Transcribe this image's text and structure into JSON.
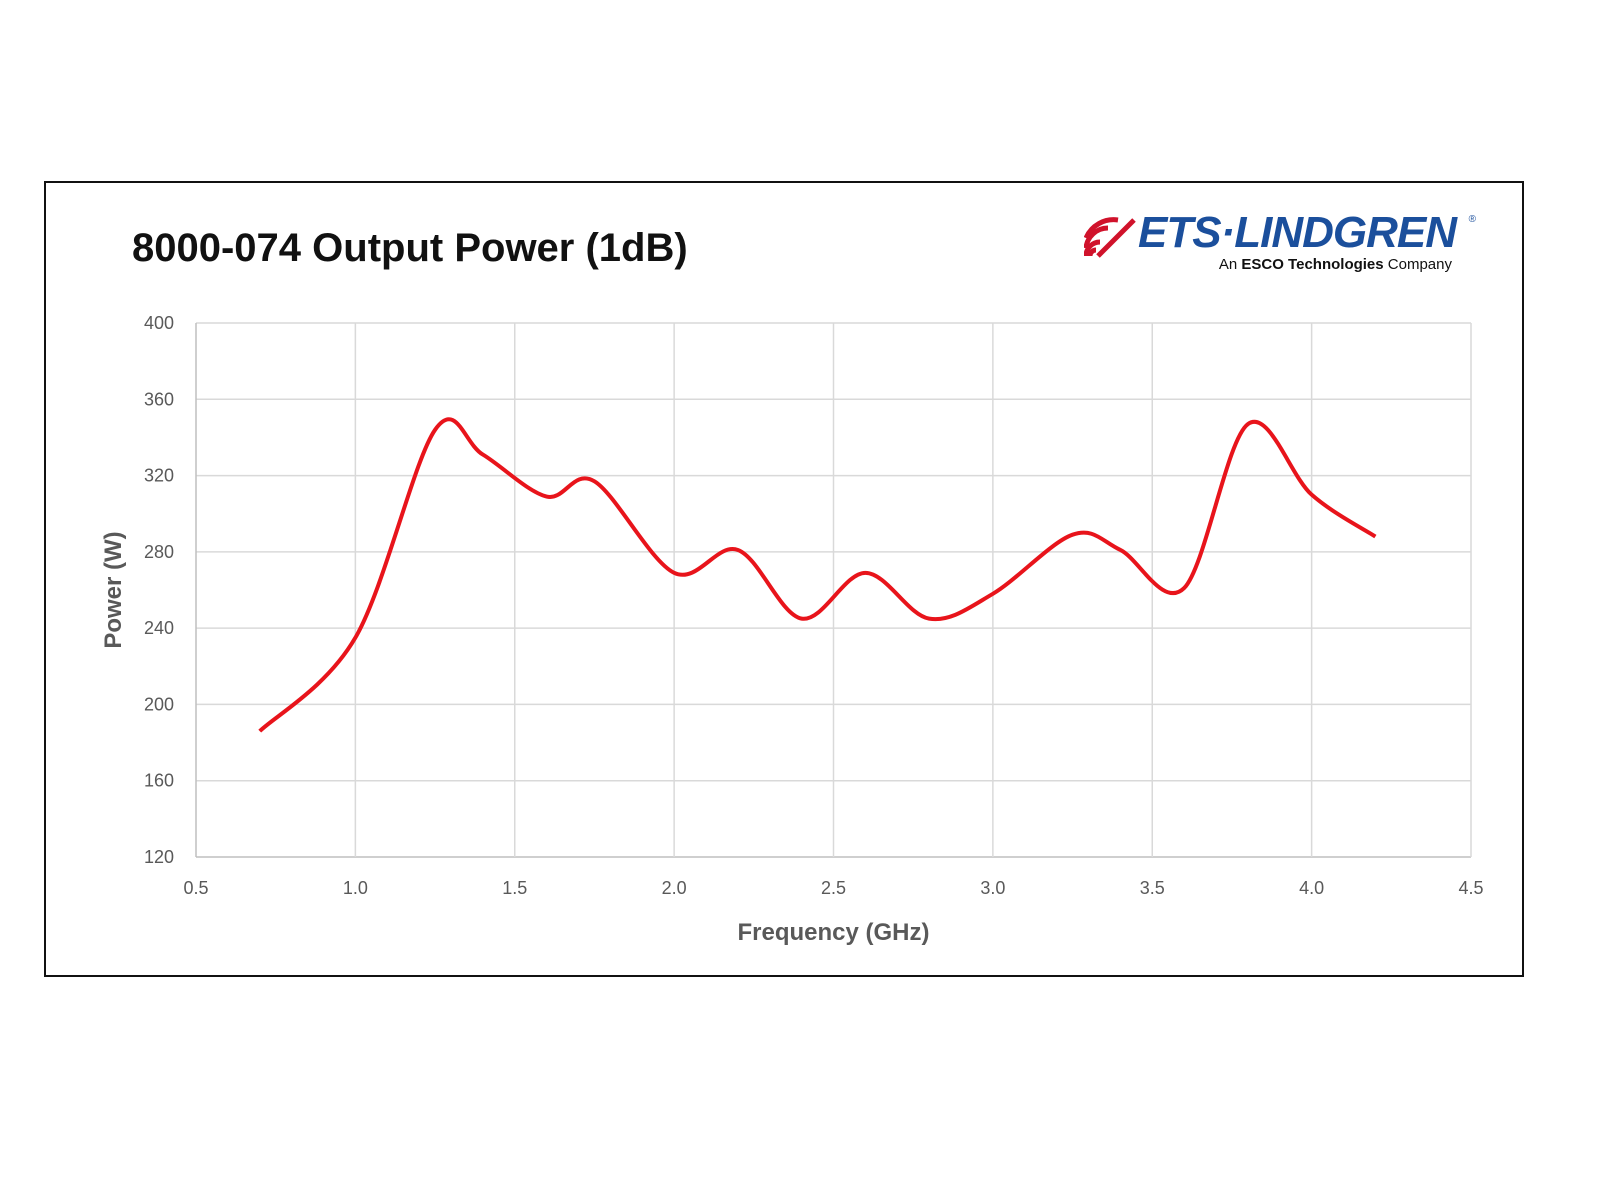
{
  "chart_data": {
    "type": "line",
    "title": "8000-074 Output Power (1dB)",
    "xlabel": "Frequency (GHz)",
    "ylabel": "Power (W)",
    "xlim": [
      0.5,
      4.5
    ],
    "ylim": [
      120,
      400
    ],
    "xticks": [
      "0.5",
      "1.0",
      "1.5",
      "2.0",
      "2.5",
      "3.0",
      "3.5",
      "4.0",
      "4.5"
    ],
    "yticks": [
      "120",
      "160",
      "200",
      "240",
      "280",
      "320",
      "360",
      "400"
    ],
    "grid": true,
    "smooth": true,
    "series": [
      {
        "color": "#e8141b",
        "x": [
          0.7,
          1.0,
          1.25,
          1.4,
          1.6,
          1.75,
          2.0,
          2.2,
          2.4,
          2.6,
          2.8,
          3.0,
          3.25,
          3.4,
          3.6,
          3.8,
          4.0,
          4.2
        ],
        "y": [
          186,
          235,
          344,
          331,
          309,
          317,
          269,
          281,
          245,
          269,
          245,
          258,
          289,
          281,
          261,
          347,
          310,
          288
        ]
      }
    ]
  },
  "logo": {
    "brand": "ETS·LINDGREN",
    "registered": "®",
    "tagline_prefix": "An",
    "tagline_bold": "ESCO Technologies",
    "tagline_suffix": "Company",
    "brand_color": "#1b4f9c",
    "accent_color": "#d0122b"
  }
}
